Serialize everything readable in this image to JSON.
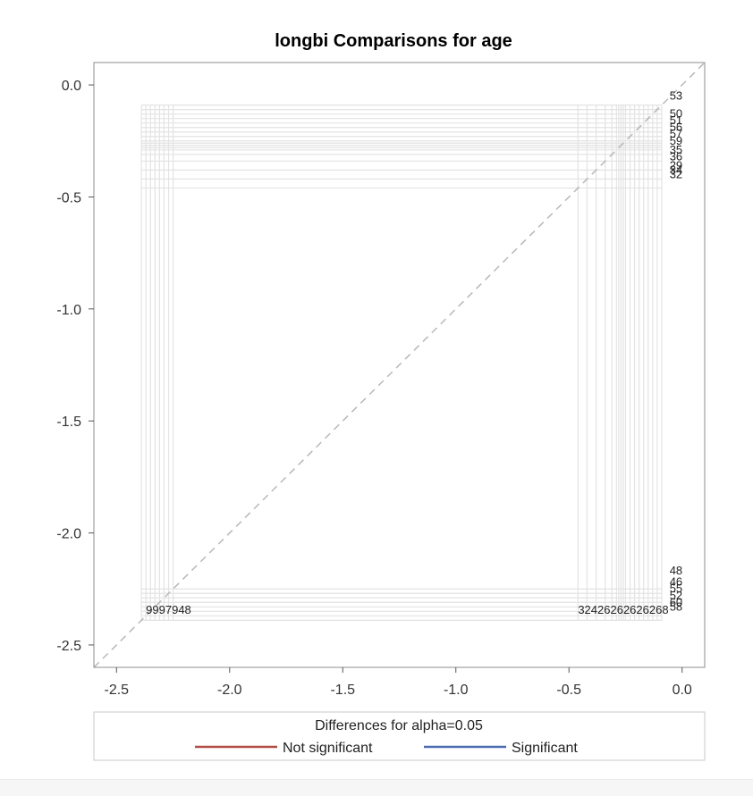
{
  "chart_data": {
    "type": "diffogram",
    "title": "longbi Comparisons for age",
    "xlim": [
      -2.6,
      0.1
    ],
    "ylim": [
      -2.6,
      0.1
    ],
    "x_ticks": [
      {
        "value": -2.5,
        "label": "-2.5"
      },
      {
        "value": -2.0,
        "label": "-2.0"
      },
      {
        "value": -1.5,
        "label": "-1.5"
      },
      {
        "value": -1.0,
        "label": "-1.0"
      },
      {
        "value": -0.5,
        "label": "-0.5"
      },
      {
        "value": 0.0,
        "label": "0.0"
      }
    ],
    "y_ticks": [
      {
        "value": 0.0,
        "label": "0.0"
      },
      {
        "value": -0.5,
        "label": "-0.5"
      },
      {
        "value": -1.0,
        "label": "-1.0"
      },
      {
        "value": -1.5,
        "label": "-1.5"
      },
      {
        "value": -2.0,
        "label": "-2.0"
      },
      {
        "value": -2.5,
        "label": "-2.5"
      }
    ],
    "reference_line": "diagonal",
    "grid_values": {
      "left_group": [
        -2.39,
        -2.37,
        -2.35,
        -2.33,
        -2.31,
        -2.29,
        -2.27,
        -2.25
      ],
      "right_group": [
        -0.46,
        -0.42,
        -0.38,
        -0.34,
        -0.31,
        -0.29,
        -0.28,
        -0.27,
        -0.26,
        -0.25,
        -0.23,
        -0.21,
        -0.19,
        -0.17,
        -0.15,
        -0.13,
        -0.11,
        -0.09
      ]
    },
    "top_labels": [
      {
        "label": "53",
        "y": -0.05
      },
      {
        "label": "50",
        "y": -0.13
      },
      {
        "label": "51",
        "y": -0.16
      },
      {
        "label": "56",
        "y": -0.19
      },
      {
        "label": "57",
        "y": -0.22
      },
      {
        "label": "59",
        "y": -0.25
      },
      {
        "label": "35",
        "y": -0.29
      },
      {
        "label": "36",
        "y": -0.32
      },
      {
        "label": "29",
        "y": -0.36
      },
      {
        "label": "34",
        "y": -0.38
      },
      {
        "label": "32",
        "y": -0.4
      }
    ],
    "right_bottom_labels": [
      {
        "label": "48",
        "y": -2.17
      },
      {
        "label": "46",
        "y": -2.22
      },
      {
        "label": "55",
        "y": -2.25
      },
      {
        "label": "52",
        "y": -2.28
      },
      {
        "label": "60",
        "y": -2.31
      },
      {
        "label": "58",
        "y": -2.33
      }
    ],
    "bottom_labels_left": "9997948",
    "bottom_labels_right": "32426262626268",
    "legend": {
      "title": "Differences for alpha=0.05",
      "placement": "bottom",
      "items": [
        {
          "name": "Not significant",
          "color": "#b24b45"
        },
        {
          "name": "Significant",
          "color": "#4a6bb0"
        }
      ]
    }
  }
}
